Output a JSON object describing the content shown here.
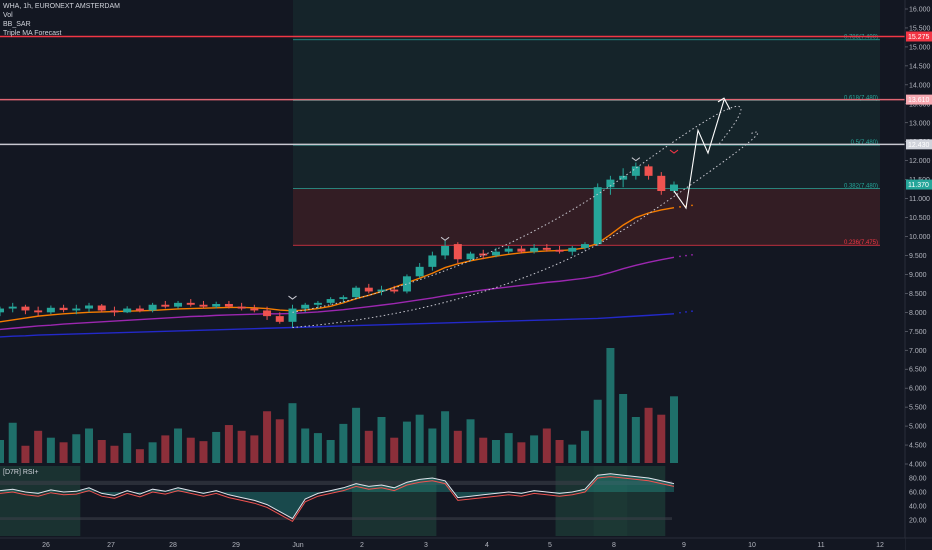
{
  "header": {
    "symbol_line": "WHA, 1h, EURONEXT AMSTERDAM",
    "indicators": [
      "Vol",
      "BB_SAR",
      "Triple MA Forecast"
    ]
  },
  "rsi_label": "[D7R] RSI+",
  "colors": {
    "background": "#131722",
    "up": "#26a69a",
    "down": "#ef5350",
    "fib_zone_green": "#1b3b36",
    "fib_zone_red": "#3a1f25",
    "resistance": "#f23645",
    "ma_fast": "#f57c00",
    "ma_mid": "#9c27b0",
    "ma_slow": "#2329c9"
  },
  "chart_data": {
    "type": "candlestick",
    "price_axis": {
      "range": [
        4.0,
        16.0
      ],
      "ticks": [
        "4.000",
        "4.500",
        "5.000",
        "5.500",
        "6.000",
        "6.500",
        "7.000",
        "7.500",
        "8.000",
        "8.500",
        "9.000",
        "9.500",
        "10.000",
        "10.500",
        "11.000",
        "11.500",
        "12.000",
        "12.500",
        "13.000",
        "13.500",
        "14.000",
        "14.500",
        "15.000",
        "15.500",
        "16.000"
      ]
    },
    "rsi_axis": {
      "ticks": [
        "80.00",
        "60.00",
        "40.00",
        "20.00"
      ]
    },
    "x_axis": {
      "ticks": [
        "26",
        "27",
        "28",
        "29",
        "Jun",
        "2",
        "3",
        "4",
        "5",
        "8",
        "9",
        "10",
        "11",
        "12"
      ]
    },
    "price_labels": [
      {
        "text": "15.275",
        "value": 15.275,
        "color": "#f23645"
      },
      {
        "text": "13.610",
        "value": 13.61,
        "color": "#f7a9b2"
      },
      {
        "text": "12.430",
        "value": 12.43,
        "color": "#d1d4dc"
      },
      {
        "text": "11.370",
        "value": 11.37,
        "color": "#26a69a"
      }
    ],
    "horizontal_levels": [
      15.275,
      13.61,
      12.43
    ],
    "fib_levels": [
      {
        "label": "0.786(7.490)",
        "value": 15.19
      },
      {
        "label": "0.618(7.480)",
        "value": 13.59
      },
      {
        "label": "0.5(7.480)",
        "value": 12.41
      },
      {
        "label": "0.382(7.480)",
        "value": 11.27
      },
      {
        "label": "0.236(7.475)",
        "value": 9.77
      }
    ],
    "candles": [
      {
        "o": 8.0,
        "h": 8.15,
        "l": 7.9,
        "c": 8.1
      },
      {
        "o": 8.1,
        "h": 8.25,
        "l": 8.0,
        "c": 8.15
      },
      {
        "o": 8.15,
        "h": 8.2,
        "l": 7.95,
        "c": 8.05
      },
      {
        "o": 8.05,
        "h": 8.15,
        "l": 7.9,
        "c": 8.0
      },
      {
        "o": 8.0,
        "h": 8.18,
        "l": 7.95,
        "c": 8.12
      },
      {
        "o": 8.12,
        "h": 8.2,
        "l": 8.0,
        "c": 8.06
      },
      {
        "o": 8.05,
        "h": 8.2,
        "l": 7.95,
        "c": 8.1
      },
      {
        "o": 8.1,
        "h": 8.25,
        "l": 8.0,
        "c": 8.18
      },
      {
        "o": 8.18,
        "h": 8.22,
        "l": 8.0,
        "c": 8.05
      },
      {
        "o": 8.05,
        "h": 8.15,
        "l": 7.9,
        "c": 8.0
      },
      {
        "o": 8.0,
        "h": 8.16,
        "l": 7.98,
        "c": 8.1
      },
      {
        "o": 8.1,
        "h": 8.18,
        "l": 8.0,
        "c": 8.04
      },
      {
        "o": 8.05,
        "h": 8.25,
        "l": 8.0,
        "c": 8.2
      },
      {
        "o": 8.2,
        "h": 8.3,
        "l": 8.1,
        "c": 8.15
      },
      {
        "o": 8.15,
        "h": 8.3,
        "l": 8.1,
        "c": 8.25
      },
      {
        "o": 8.25,
        "h": 8.35,
        "l": 8.15,
        "c": 8.2
      },
      {
        "o": 8.2,
        "h": 8.3,
        "l": 8.1,
        "c": 8.15
      },
      {
        "o": 8.15,
        "h": 8.28,
        "l": 8.1,
        "c": 8.22
      },
      {
        "o": 8.22,
        "h": 8.3,
        "l": 8.1,
        "c": 8.15
      },
      {
        "o": 8.15,
        "h": 8.25,
        "l": 8.05,
        "c": 8.1
      },
      {
        "o": 8.1,
        "h": 8.2,
        "l": 8.0,
        "c": 8.05
      },
      {
        "o": 8.05,
        "h": 8.15,
        "l": 7.8,
        "c": 7.9
      },
      {
        "o": 7.9,
        "h": 8.0,
        "l": 7.7,
        "c": 7.75
      },
      {
        "o": 7.75,
        "h": 8.2,
        "l": 7.6,
        "c": 8.1
      },
      {
        "o": 8.1,
        "h": 8.25,
        "l": 8.0,
        "c": 8.2
      },
      {
        "o": 8.2,
        "h": 8.3,
        "l": 8.1,
        "c": 8.25
      },
      {
        "o": 8.25,
        "h": 8.4,
        "l": 8.2,
        "c": 8.35
      },
      {
        "o": 8.35,
        "h": 8.45,
        "l": 8.25,
        "c": 8.4
      },
      {
        "o": 8.4,
        "h": 8.7,
        "l": 8.35,
        "c": 8.65
      },
      {
        "o": 8.65,
        "h": 8.75,
        "l": 8.5,
        "c": 8.55
      },
      {
        "o": 8.55,
        "h": 8.7,
        "l": 8.45,
        "c": 8.6
      },
      {
        "o": 8.6,
        "h": 8.7,
        "l": 8.5,
        "c": 8.55
      },
      {
        "o": 8.55,
        "h": 9.0,
        "l": 8.5,
        "c": 8.95
      },
      {
        "o": 8.95,
        "h": 9.3,
        "l": 8.9,
        "c": 9.2
      },
      {
        "o": 9.2,
        "h": 9.6,
        "l": 9.1,
        "c": 9.5
      },
      {
        "o": 9.5,
        "h": 9.9,
        "l": 9.4,
        "c": 9.75
      },
      {
        "o": 9.8,
        "h": 9.85,
        "l": 9.3,
        "c": 9.4
      },
      {
        "o": 9.4,
        "h": 9.6,
        "l": 9.35,
        "c": 9.55
      },
      {
        "o": 9.55,
        "h": 9.65,
        "l": 9.4,
        "c": 9.5
      },
      {
        "o": 9.5,
        "h": 9.7,
        "l": 9.45,
        "c": 9.6
      },
      {
        "o": 9.6,
        "h": 9.75,
        "l": 9.55,
        "c": 9.68
      },
      {
        "o": 9.68,
        "h": 9.75,
        "l": 9.55,
        "c": 9.6
      },
      {
        "o": 9.6,
        "h": 9.8,
        "l": 9.55,
        "c": 9.7
      },
      {
        "o": 9.7,
        "h": 9.8,
        "l": 9.6,
        "c": 9.65
      },
      {
        "o": 9.65,
        "h": 9.75,
        "l": 9.55,
        "c": 9.6
      },
      {
        "o": 9.6,
        "h": 9.75,
        "l": 9.5,
        "c": 9.7
      },
      {
        "o": 9.7,
        "h": 9.85,
        "l": 9.65,
        "c": 9.8
      },
      {
        "o": 9.8,
        "h": 11.4,
        "l": 9.75,
        "c": 11.3
      },
      {
        "o": 11.3,
        "h": 11.6,
        "l": 11.1,
        "c": 11.5
      },
      {
        "o": 11.5,
        "h": 11.8,
        "l": 11.3,
        "c": 11.6
      },
      {
        "o": 11.6,
        "h": 11.95,
        "l": 11.5,
        "c": 11.85
      },
      {
        "o": 11.85,
        "h": 11.9,
        "l": 11.5,
        "c": 11.6
      },
      {
        "o": 11.6,
        "h": 11.7,
        "l": 11.1,
        "c": 11.2
      },
      {
        "o": 11.2,
        "h": 11.45,
        "l": 11.15,
        "c": 11.37
      }
    ],
    "volume": [
      20,
      35,
      15,
      28,
      22,
      18,
      25,
      30,
      20,
      15,
      26,
      12,
      18,
      24,
      30,
      22,
      19,
      27,
      33,
      28,
      24,
      45,
      38,
      52,
      30,
      26,
      20,
      34,
      48,
      28,
      40,
      22,
      36,
      42,
      30,
      45,
      28,
      38,
      22,
      20,
      26,
      18,
      24,
      30,
      20,
      16,
      28,
      55,
      100,
      60,
      40,
      48,
      42,
      58
    ],
    "triple_ma": [
      {
        "name": "fast",
        "values": [
          7.75,
          7.8,
          7.85,
          7.9,
          7.93,
          7.96,
          7.98,
          8.0,
          8.01,
          8.02,
          8.03,
          8.04,
          8.05,
          8.07,
          8.09,
          8.1,
          8.11,
          8.12,
          8.13,
          8.13,
          8.12,
          8.1,
          8.06,
          8.04,
          8.06,
          8.1,
          8.16,
          8.25,
          8.36,
          8.45,
          8.55,
          8.66,
          8.78,
          8.9,
          9.03,
          9.18,
          9.28,
          9.36,
          9.42,
          9.48,
          9.53,
          9.57,
          9.6,
          9.62,
          9.63,
          9.65,
          9.7,
          9.82,
          10.05,
          10.3,
          10.5,
          10.62,
          10.7,
          10.76
        ]
      },
      {
        "name": "mid",
        "values": [
          7.55,
          7.58,
          7.61,
          7.64,
          7.66,
          7.69,
          7.71,
          7.73,
          7.75,
          7.77,
          7.79,
          7.81,
          7.83,
          7.85,
          7.87,
          7.89,
          7.9,
          7.92,
          7.93,
          7.94,
          7.95,
          7.96,
          7.96,
          7.97,
          7.99,
          8.01,
          8.04,
          8.07,
          8.11,
          8.15,
          8.19,
          8.23,
          8.28,
          8.33,
          8.38,
          8.44,
          8.49,
          8.54,
          8.59,
          8.63,
          8.67,
          8.71,
          8.75,
          8.79,
          8.82,
          8.86,
          8.9,
          8.96,
          9.05,
          9.15,
          9.24,
          9.32,
          9.39,
          9.45
        ]
      },
      {
        "name": "slow",
        "values": [
          7.35,
          7.37,
          7.38,
          7.4,
          7.41,
          7.42,
          7.43,
          7.44,
          7.45,
          7.46,
          7.47,
          7.48,
          7.49,
          7.5,
          7.51,
          7.52,
          7.53,
          7.54,
          7.55,
          7.56,
          7.57,
          7.58,
          7.59,
          7.6,
          7.61,
          7.62,
          7.63,
          7.64,
          7.65,
          7.66,
          7.67,
          7.68,
          7.69,
          7.7,
          7.71,
          7.72,
          7.73,
          7.74,
          7.75,
          7.76,
          7.77,
          7.78,
          7.79,
          7.8,
          7.81,
          7.82,
          7.83,
          7.84,
          7.86,
          7.88,
          7.9,
          7.92,
          7.94,
          7.96
        ]
      }
    ],
    "rsi": [
      62,
      64,
      60,
      58,
      63,
      60,
      61,
      66,
      58,
      55,
      62,
      57,
      64,
      61,
      66,
      62,
      58,
      62,
      56,
      52,
      48,
      42,
      32,
      22,
      50,
      58,
      62,
      66,
      72,
      68,
      70,
      66,
      74,
      78,
      80,
      76,
      52,
      54,
      56,
      58,
      60,
      58,
      62,
      60,
      58,
      60,
      64,
      84,
      86,
      84,
      82,
      80,
      76,
      72
    ]
  }
}
